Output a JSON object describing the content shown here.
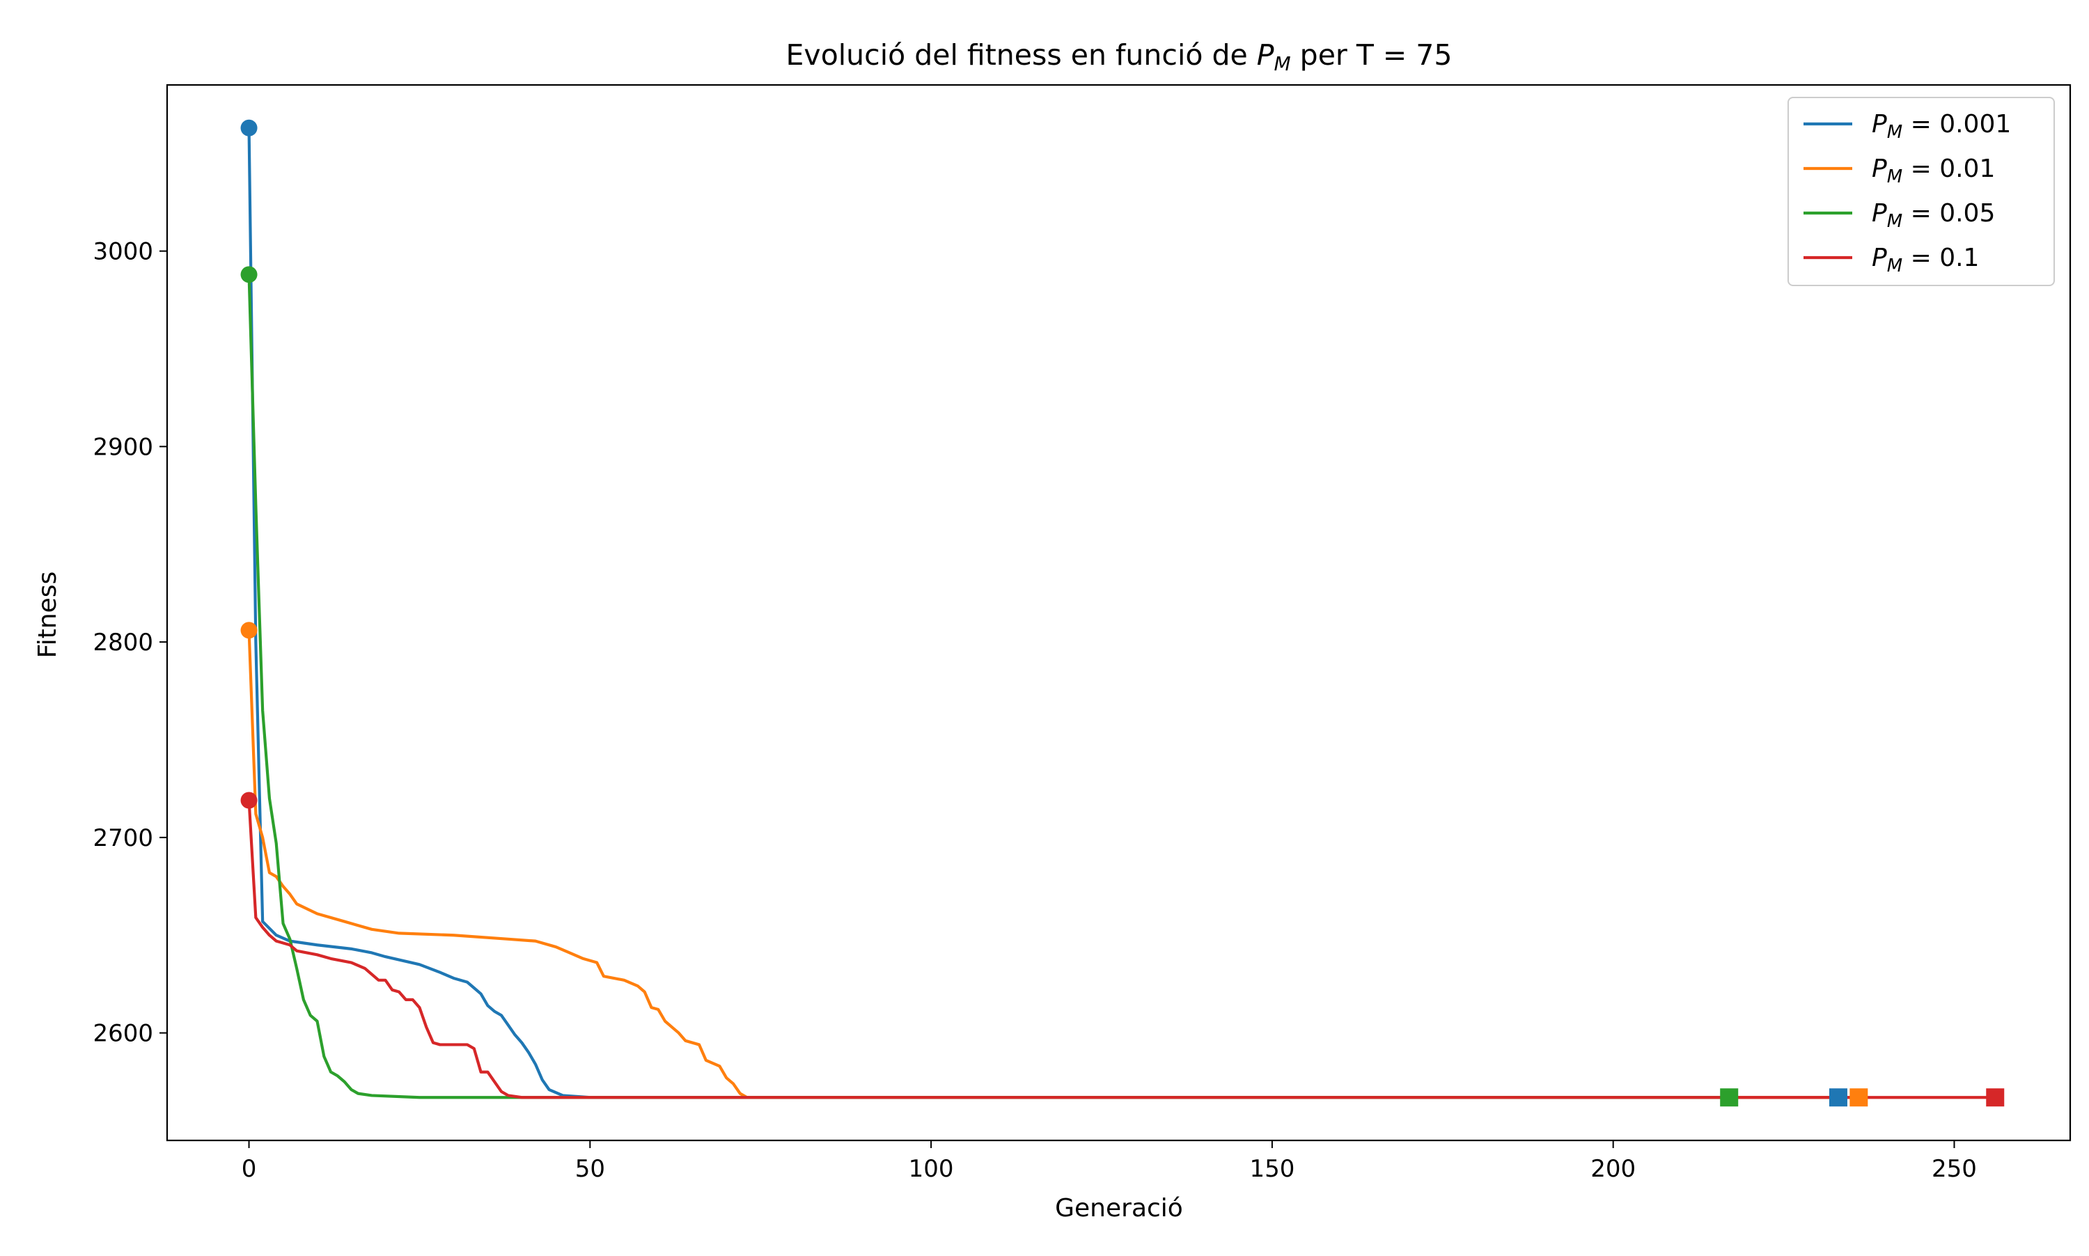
{
  "chart_data": {
    "type": "line",
    "title": {
      "prefix": "Evolució del fitness en funció de ",
      "symbol": "P",
      "subscript": "M",
      "suffix": " per T = 75"
    },
    "xlabel": "Generació",
    "ylabel": "Fitness",
    "xlim": [
      -12,
      267
    ],
    "ylim": [
      2545,
      3085
    ],
    "xticks": [
      0,
      50,
      100,
      150,
      200,
      250
    ],
    "yticks": [
      2600,
      2700,
      2800,
      2900,
      3000
    ],
    "grid": false,
    "legend_position": "top-right",
    "series": [
      {
        "name": "0.001",
        "label_symbol": "P",
        "label_subscript": "M",
        "label_value": " = 0.001",
        "color": "#1f77b4",
        "start_marker": "circle",
        "end_marker": "square",
        "points": [
          [
            0,
            3063
          ],
          [
            1,
            2800
          ],
          [
            2,
            2657
          ],
          [
            4,
            2650
          ],
          [
            6,
            2647
          ],
          [
            10,
            2645
          ],
          [
            15,
            2643
          ],
          [
            18,
            2641
          ],
          [
            20,
            2639
          ],
          [
            25,
            2635
          ],
          [
            28,
            2631
          ],
          [
            30,
            2628
          ],
          [
            32,
            2626
          ],
          [
            33,
            2623
          ],
          [
            34,
            2620
          ],
          [
            35,
            2614
          ],
          [
            36,
            2611
          ],
          [
            37,
            2609
          ],
          [
            38,
            2604
          ],
          [
            39,
            2599
          ],
          [
            40,
            2595
          ],
          [
            41,
            2590
          ],
          [
            42,
            2584
          ],
          [
            43,
            2576
          ],
          [
            44,
            2571
          ],
          [
            46,
            2568
          ],
          [
            50,
            2567
          ],
          [
            233,
            2567
          ]
        ]
      },
      {
        "name": "0.01",
        "label_symbol": "P",
        "label_subscript": "M",
        "label_value": " = 0.01",
        "color": "#ff7f0e",
        "start_marker": "circle",
        "end_marker": "square",
        "points": [
          [
            0,
            2806
          ],
          [
            1,
            2712
          ],
          [
            2,
            2700
          ],
          [
            3,
            2682
          ],
          [
            4,
            2680
          ],
          [
            5,
            2675
          ],
          [
            6,
            2671
          ],
          [
            7,
            2666
          ],
          [
            10,
            2661
          ],
          [
            14,
            2657
          ],
          [
            18,
            2653
          ],
          [
            22,
            2651
          ],
          [
            30,
            2650
          ],
          [
            38,
            2648
          ],
          [
            42,
            2647
          ],
          [
            45,
            2644
          ],
          [
            47,
            2641
          ],
          [
            49,
            2638
          ],
          [
            51,
            2636
          ],
          [
            52,
            2629
          ],
          [
            55,
            2627
          ],
          [
            57,
            2624
          ],
          [
            58,
            2621
          ],
          [
            59,
            2613
          ],
          [
            60,
            2612
          ],
          [
            61,
            2606
          ],
          [
            62,
            2603
          ],
          [
            63,
            2600
          ],
          [
            64,
            2596
          ],
          [
            66,
            2594
          ],
          [
            67,
            2586
          ],
          [
            69,
            2583
          ],
          [
            70,
            2577
          ],
          [
            71,
            2574
          ],
          [
            72,
            2569
          ],
          [
            73,
            2567
          ],
          [
            236,
            2567
          ]
        ]
      },
      {
        "name": "0.05",
        "label_symbol": "P",
        "label_subscript": "M",
        "label_value": " = 0.05",
        "color": "#2ca02c",
        "start_marker": "circle",
        "end_marker": "square",
        "points": [
          [
            0,
            2988
          ],
          [
            1,
            2870
          ],
          [
            2,
            2765
          ],
          [
            3,
            2720
          ],
          [
            4,
            2697
          ],
          [
            5,
            2656
          ],
          [
            6,
            2648
          ],
          [
            7,
            2633
          ],
          [
            8,
            2617
          ],
          [
            9,
            2609
          ],
          [
            10,
            2606
          ],
          [
            11,
            2588
          ],
          [
            12,
            2580
          ],
          [
            13,
            2578
          ],
          [
            14,
            2575
          ],
          [
            15,
            2571
          ],
          [
            16,
            2569
          ],
          [
            18,
            2568
          ],
          [
            25,
            2567
          ],
          [
            217,
            2567
          ]
        ]
      },
      {
        "name": "0.1",
        "label_symbol": "P",
        "label_subscript": "M",
        "label_value": " = 0.1",
        "color": "#d62728",
        "start_marker": "circle",
        "end_marker": "square",
        "points": [
          [
            0,
            2719
          ],
          [
            1,
            2659
          ],
          [
            2,
            2654
          ],
          [
            3,
            2650
          ],
          [
            4,
            2647
          ],
          [
            6,
            2645
          ],
          [
            7,
            2642
          ],
          [
            10,
            2640
          ],
          [
            12,
            2638
          ],
          [
            15,
            2636
          ],
          [
            17,
            2633
          ],
          [
            19,
            2627
          ],
          [
            20,
            2627
          ],
          [
            21,
            2622
          ],
          [
            22,
            2621
          ],
          [
            23,
            2617
          ],
          [
            24,
            2617
          ],
          [
            25,
            2613
          ],
          [
            26,
            2603
          ],
          [
            27,
            2595
          ],
          [
            28,
            2594
          ],
          [
            32,
            2594
          ],
          [
            33,
            2592
          ],
          [
            34,
            2580
          ],
          [
            35,
            2580
          ],
          [
            36,
            2575
          ],
          [
            37,
            2570
          ],
          [
            38,
            2568
          ],
          [
            40,
            2567
          ],
          [
            256,
            2567
          ]
        ]
      }
    ]
  }
}
